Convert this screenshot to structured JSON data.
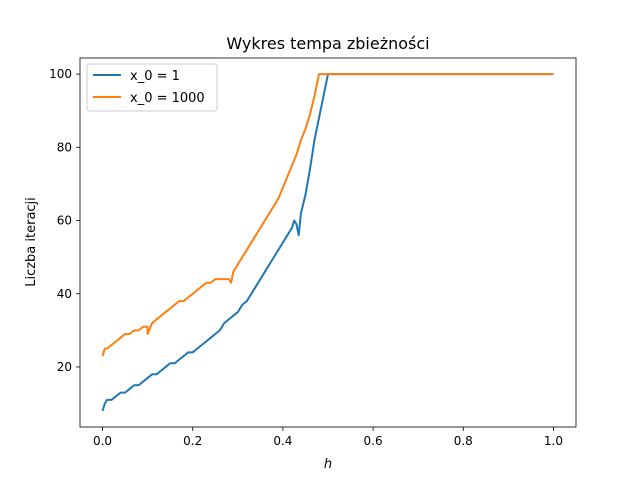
{
  "chart_data": {
    "type": "line",
    "title": "Wykres tempa zbieżności",
    "xlabel": "h",
    "ylabel": "Liczba iteracji",
    "xlim": [
      -0.05,
      1.05
    ],
    "ylim": [
      3.6,
      104.4
    ],
    "xticks": [
      0.0,
      0.2,
      0.4,
      0.6,
      0.8,
      1.0
    ],
    "xtick_labels": [
      "0.0",
      "0.2",
      "0.4",
      "0.6",
      "0.8",
      "1.0"
    ],
    "yticks": [
      20,
      40,
      60,
      80,
      100
    ],
    "ytick_labels": [
      "20",
      "40",
      "60",
      "80",
      "100"
    ],
    "grid": false,
    "legend_position": "upper left",
    "series": [
      {
        "name": "x_0 = 1",
        "color": "#1f77b4",
        "points": [
          [
            0.0,
            8
          ],
          [
            0.005,
            10
          ],
          [
            0.01,
            11
          ],
          [
            0.02,
            11
          ],
          [
            0.03,
            12
          ],
          [
            0.04,
            13
          ],
          [
            0.05,
            13
          ],
          [
            0.06,
            14
          ],
          [
            0.07,
            15
          ],
          [
            0.08,
            15
          ],
          [
            0.09,
            16
          ],
          [
            0.1,
            17
          ],
          [
            0.11,
            18
          ],
          [
            0.12,
            18
          ],
          [
            0.13,
            19
          ],
          [
            0.14,
            20
          ],
          [
            0.15,
            21
          ],
          [
            0.16,
            21
          ],
          [
            0.17,
            22
          ],
          [
            0.18,
            23
          ],
          [
            0.19,
            24
          ],
          [
            0.2,
            24
          ],
          [
            0.21,
            25
          ],
          [
            0.22,
            26
          ],
          [
            0.23,
            27
          ],
          [
            0.24,
            28
          ],
          [
            0.25,
            29
          ],
          [
            0.26,
            30
          ],
          [
            0.27,
            32
          ],
          [
            0.28,
            33
          ],
          [
            0.29,
            34
          ],
          [
            0.3,
            35
          ],
          [
            0.31,
            37
          ],
          [
            0.32,
            38
          ],
          [
            0.33,
            40
          ],
          [
            0.34,
            42
          ],
          [
            0.35,
            44
          ],
          [
            0.36,
            46
          ],
          [
            0.37,
            48
          ],
          [
            0.38,
            50
          ],
          [
            0.39,
            52
          ],
          [
            0.4,
            54
          ],
          [
            0.41,
            56
          ],
          [
            0.42,
            58
          ],
          [
            0.425,
            60
          ],
          [
            0.43,
            59
          ],
          [
            0.435,
            56
          ],
          [
            0.44,
            62
          ],
          [
            0.45,
            67
          ],
          [
            0.46,
            74
          ],
          [
            0.47,
            82
          ],
          [
            0.48,
            88
          ],
          [
            0.49,
            94
          ],
          [
            0.5,
            100
          ],
          [
            0.6,
            100
          ],
          [
            0.7,
            100
          ],
          [
            0.8,
            100
          ],
          [
            0.9,
            100
          ],
          [
            1.0,
            100
          ]
        ]
      },
      {
        "name": "x_0 = 1000",
        "color": "#ff7f0e",
        "points": [
          [
            0.0,
            23
          ],
          [
            0.005,
            25
          ],
          [
            0.01,
            25
          ],
          [
            0.02,
            26
          ],
          [
            0.03,
            27
          ],
          [
            0.04,
            28
          ],
          [
            0.05,
            29
          ],
          [
            0.06,
            29
          ],
          [
            0.07,
            30
          ],
          [
            0.08,
            30
          ],
          [
            0.09,
            31
          ],
          [
            0.1,
            31
          ],
          [
            0.1,
            29
          ],
          [
            0.11,
            32
          ],
          [
            0.12,
            33
          ],
          [
            0.13,
            34
          ],
          [
            0.14,
            35
          ],
          [
            0.15,
            36
          ],
          [
            0.16,
            37
          ],
          [
            0.17,
            38
          ],
          [
            0.18,
            38
          ],
          [
            0.19,
            39
          ],
          [
            0.2,
            40
          ],
          [
            0.21,
            41
          ],
          [
            0.22,
            42
          ],
          [
            0.23,
            43
          ],
          [
            0.24,
            43
          ],
          [
            0.25,
            44
          ],
          [
            0.26,
            44
          ],
          [
            0.27,
            44
          ],
          [
            0.28,
            44
          ],
          [
            0.285,
            43
          ],
          [
            0.29,
            46
          ],
          [
            0.3,
            48
          ],
          [
            0.31,
            50
          ],
          [
            0.32,
            52
          ],
          [
            0.33,
            54
          ],
          [
            0.34,
            56
          ],
          [
            0.35,
            58
          ],
          [
            0.36,
            60
          ],
          [
            0.37,
            62
          ],
          [
            0.38,
            64
          ],
          [
            0.39,
            66
          ],
          [
            0.4,
            69
          ],
          [
            0.41,
            72
          ],
          [
            0.42,
            75
          ],
          [
            0.43,
            78
          ],
          [
            0.44,
            82
          ],
          [
            0.45,
            85
          ],
          [
            0.46,
            89
          ],
          [
            0.47,
            94
          ],
          [
            0.48,
            100
          ],
          [
            0.5,
            100
          ],
          [
            0.6,
            100
          ],
          [
            0.7,
            100
          ],
          [
            0.8,
            100
          ],
          [
            0.9,
            100
          ],
          [
            1.0,
            100
          ]
        ]
      }
    ]
  }
}
